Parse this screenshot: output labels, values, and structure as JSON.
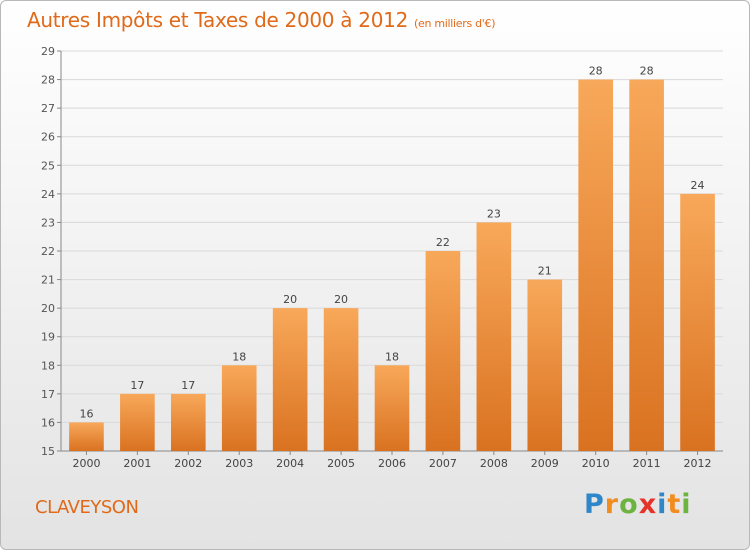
{
  "header": {
    "title": "Autres Impôts et Taxes de 2000 à 2012",
    "unit": "(en milliers d'€)"
  },
  "commune": "CLAVEYSON",
  "brand": {
    "letters": [
      "P",
      "r",
      "o",
      "x",
      "i",
      "t",
      "i"
    ],
    "colors": [
      "#2f86c9",
      "#f28c1e",
      "#6cb33f",
      "#e5332a",
      "#2f86c9",
      "#f28c1e",
      "#6cb33f"
    ]
  },
  "colors": {
    "accent": "#e06a19",
    "bar_light": "#f8a85a",
    "bar_dark": "#d97220",
    "grid": "#d9d9d9"
  },
  "chart_data": {
    "type": "bar",
    "categories": [
      "2000",
      "2001",
      "2002",
      "2003",
      "2004",
      "2005",
      "2006",
      "2007",
      "2008",
      "2009",
      "2010",
      "2011",
      "2012"
    ],
    "values": [
      16,
      17,
      17,
      18,
      20,
      20,
      18,
      22,
      23,
      21,
      28,
      28,
      24
    ],
    "title": "Autres Impôts et Taxes de 2000 à 2012",
    "ylim": [
      15,
      29
    ],
    "yticks": [
      15,
      16,
      17,
      18,
      19,
      20,
      21,
      22,
      23,
      24,
      25,
      26,
      27,
      28,
      29
    ],
    "grid": true
  }
}
